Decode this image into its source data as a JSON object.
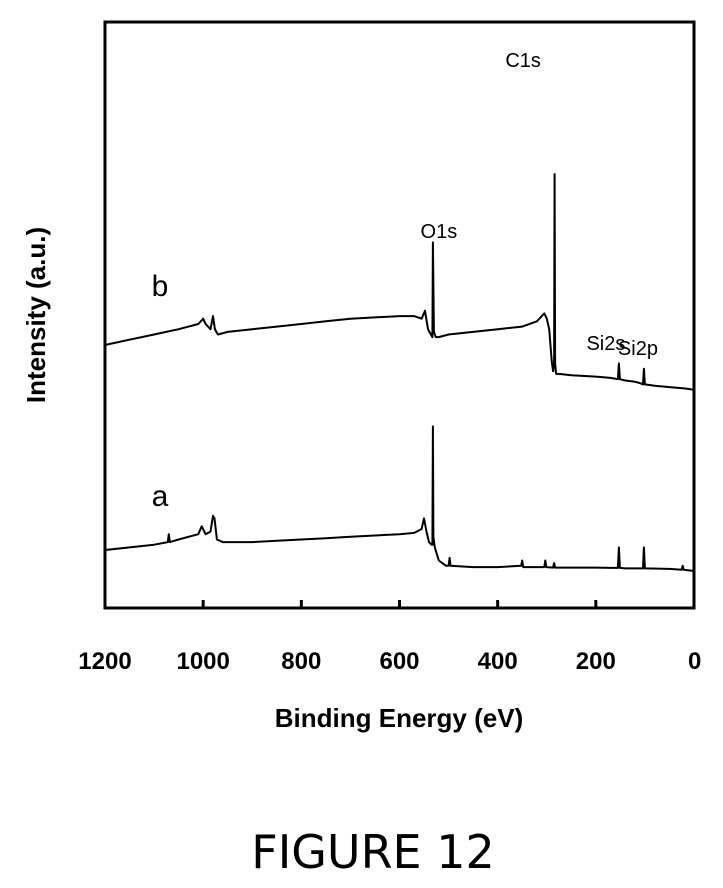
{
  "chart_data": {
    "type": "line",
    "title": "",
    "xlabel": "Binding Energy (eV)",
    "ylabel": "Intensity (a.u.)",
    "xlim": [
      1200,
      0
    ],
    "x_reversed": true,
    "x_ticks": [
      1200,
      1000,
      800,
      600,
      400,
      200,
      0
    ],
    "x_tick_labels": [
      "1200",
      "1000",
      "800",
      "600",
      "400",
      "200",
      "0"
    ],
    "y_ticks": "none",
    "grid": false,
    "legend": "none",
    "curve_labels": [
      {
        "text": "b",
        "series": "b"
      },
      {
        "text": "a",
        "series": "a"
      }
    ],
    "peak_labels": [
      {
        "text": "C1s",
        "x": 285
      },
      {
        "text": "O1s",
        "x": 532
      },
      {
        "text": "Si2s",
        "x": 153
      },
      {
        "text": "Si2p",
        "x": 102
      }
    ],
    "series": [
      {
        "name": "b",
        "points": [
          [
            1200,
            54
          ],
          [
            1150,
            56
          ],
          [
            1100,
            58
          ],
          [
            1050,
            60
          ],
          [
            1010,
            62
          ],
          [
            1000,
            64
          ],
          [
            995,
            62
          ],
          [
            985,
            60
          ],
          [
            980,
            65
          ],
          [
            976,
            60
          ],
          [
            970,
            58
          ],
          [
            950,
            59
          ],
          [
            900,
            60
          ],
          [
            850,
            61
          ],
          [
            800,
            62
          ],
          [
            750,
            63
          ],
          [
            700,
            64
          ],
          [
            650,
            64.5
          ],
          [
            600,
            65
          ],
          [
            570,
            65
          ],
          [
            555,
            64
          ],
          [
            548,
            67
          ],
          [
            542,
            60
          ],
          [
            536,
            58
          ],
          [
            533,
            57
          ],
          [
            532,
            93
          ],
          [
            530,
            59
          ],
          [
            526,
            57
          ],
          [
            520,
            57
          ],
          [
            500,
            58
          ],
          [
            450,
            59
          ],
          [
            400,
            60
          ],
          [
            350,
            61
          ],
          [
            320,
            63
          ],
          [
            305,
            66
          ],
          [
            300,
            64
          ],
          [
            295,
            60
          ],
          [
            290,
            48
          ],
          [
            287,
            44
          ],
          [
            285,
            47
          ],
          [
            284,
            119
          ],
          [
            283,
            47
          ],
          [
            281,
            43
          ],
          [
            275,
            43
          ],
          [
            250,
            42.5
          ],
          [
            200,
            42
          ],
          [
            170,
            41.5
          ],
          [
            155,
            41
          ],
          [
            153,
            47
          ],
          [
            151,
            41
          ],
          [
            140,
            40.5
          ],
          [
            120,
            40
          ],
          [
            110,
            39.5
          ],
          [
            104,
            39
          ],
          [
            102,
            45
          ],
          [
            100,
            39
          ],
          [
            80,
            38.5
          ],
          [
            50,
            38
          ],
          [
            20,
            37.5
          ],
          [
            0,
            37
          ]
        ]
      },
      {
        "name": "a",
        "points": [
          [
            1200,
            10
          ],
          [
            1150,
            11
          ],
          [
            1100,
            12
          ],
          [
            1072,
            13
          ],
          [
            1070,
            16
          ],
          [
            1068,
            13
          ],
          [
            1050,
            14
          ],
          [
            1010,
            16
          ],
          [
            1003,
            19
          ],
          [
            995,
            16
          ],
          [
            985,
            17
          ],
          [
            980,
            23
          ],
          [
            977,
            22
          ],
          [
            972,
            14
          ],
          [
            960,
            13
          ],
          [
            900,
            13
          ],
          [
            850,
            13.5
          ],
          [
            800,
            14
          ],
          [
            750,
            14.5
          ],
          [
            700,
            15
          ],
          [
            650,
            15.5
          ],
          [
            600,
            16
          ],
          [
            570,
            16.5
          ],
          [
            555,
            18
          ],
          [
            550,
            22
          ],
          [
            545,
            17
          ],
          [
            540,
            13
          ],
          [
            535,
            12
          ],
          [
            533,
            12
          ],
          [
            532,
            57
          ],
          [
            531,
            15
          ],
          [
            528,
            11
          ],
          [
            520,
            6
          ],
          [
            505,
            4
          ],
          [
            500,
            4
          ],
          [
            498,
            7
          ],
          [
            496,
            4
          ],
          [
            450,
            3.5
          ],
          [
            400,
            3.5
          ],
          [
            352,
            4
          ],
          [
            350,
            6
          ],
          [
            348,
            3.5
          ],
          [
            320,
            3.5
          ],
          [
            305,
            3.5
          ],
          [
            303,
            6
          ],
          [
            301,
            3.5
          ],
          [
            287,
            3.3
          ],
          [
            285,
            5
          ],
          [
            283,
            3.3
          ],
          [
            250,
            3.3
          ],
          [
            200,
            3.3
          ],
          [
            170,
            3.2
          ],
          [
            155,
            3.2
          ],
          [
            153,
            11
          ],
          [
            151,
            3.2
          ],
          [
            140,
            3
          ],
          [
            120,
            3
          ],
          [
            104,
            3
          ],
          [
            102,
            11
          ],
          [
            100,
            3
          ],
          [
            50,
            2.8
          ],
          [
            25,
            2.5
          ],
          [
            23,
            4
          ],
          [
            21,
            2.5
          ],
          [
            0,
            2
          ]
        ]
      }
    ]
  },
  "figure": {
    "caption": "FIGURE 12"
  }
}
